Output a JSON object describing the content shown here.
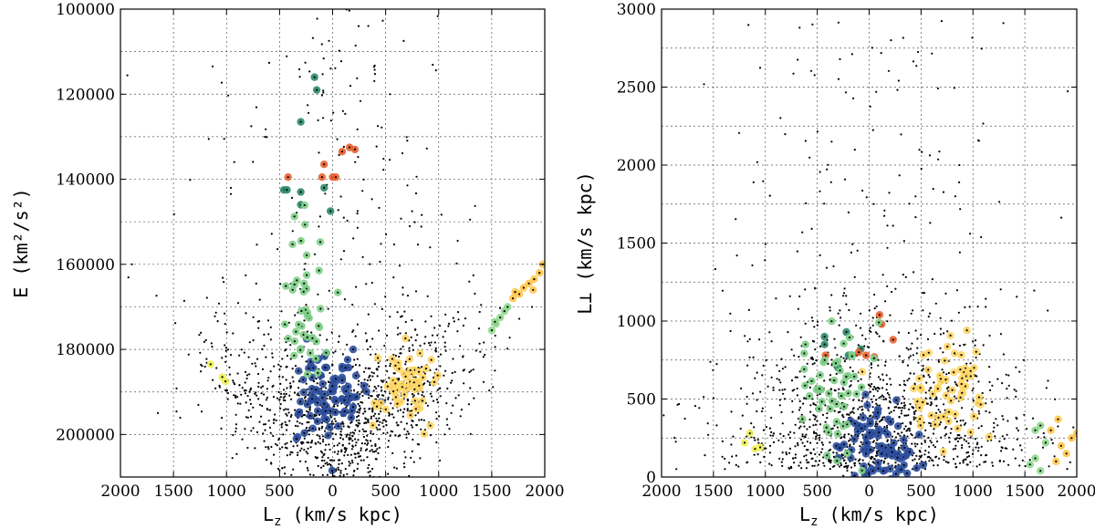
{
  "chart_data": [
    {
      "type": "scatter",
      "title": "",
      "xlabel": "L",
      "xlabel_sub": "z",
      "xlabel_units": "(km/s kpc)",
      "ylabel": "E (km²/s²)",
      "xlim": [
        -2000,
        2000
      ],
      "ylim": [
        210000,
        100000
      ],
      "x_ticks": [
        -2000,
        -1500,
        -1000,
        -500,
        0,
        500,
        1000,
        1500,
        2000
      ],
      "x_tick_labels": [
        "2000",
        "1500",
        "1000",
        "500",
        "0",
        "500",
        "1000",
        "1500",
        "2000"
      ],
      "y_ticks": [
        100000,
        120000,
        140000,
        160000,
        180000,
        200000
      ],
      "y_tick_labels": [
        "100000",
        "120000",
        "140000",
        "160000",
        "180000",
        "200000"
      ],
      "grid": true,
      "series": [
        {
          "color": "#2d4f9e",
          "center": [
            -20,
            190500
          ],
          "spread": [
            190,
            7000
          ],
          "count": 90
        },
        {
          "color": "#ffd766",
          "center": [
            700,
            188000
          ],
          "spread": [
            160,
            4000
          ],
          "count": 60
        },
        {
          "color": "#2b8a6c",
          "points": [
            [
              -170,
              116000
            ],
            [
              -150,
              119000
            ],
            [
              -300,
              126500
            ],
            [
              -460,
              142500
            ],
            [
              -430,
              142500
            ],
            [
              -300,
              143000
            ],
            [
              -80,
              142000
            ],
            [
              -300,
              146000
            ],
            [
              -20,
              147500
            ]
          ]
        },
        {
          "color": "#e8602c",
          "points": [
            [
              90,
              133500
            ],
            [
              160,
              132500
            ],
            [
              210,
              133000
            ],
            [
              -80,
              136500
            ],
            [
              -420,
              139500
            ],
            [
              -100,
              139500
            ],
            [
              0,
              139500
            ],
            [
              30,
              139500
            ]
          ]
        },
        {
          "color": "#7fcf88",
          "center": [
            -250,
            170000
          ],
          "spread": [
            130,
            9000
          ],
          "count": 45
        },
        {
          "color": "#8fd98f",
          "points": [
            [
              1500,
              175500
            ],
            [
              1540,
              174000
            ],
            [
              1580,
              172500
            ],
            [
              1620,
              171000
            ],
            [
              1650,
              170000
            ],
            [
              1530,
              173500
            ]
          ]
        },
        {
          "color": "#ffc64a",
          "points": [
            [
              1700,
              168000
            ],
            [
              1760,
              167000
            ],
            [
              1800,
              165500
            ],
            [
              1850,
              164500
            ],
            [
              1900,
              163500
            ],
            [
              1950,
              162000
            ],
            [
              1980,
              160000
            ],
            [
              1720,
              166500
            ],
            [
              1890,
              166000
            ]
          ]
        },
        {
          "color": "#f0f05a",
          "points": [
            [
              -1150,
              183500
            ],
            [
              -1040,
              186500
            ],
            [
              -1010,
              187500
            ]
          ]
        }
      ]
    },
    {
      "type": "scatter",
      "title": "",
      "xlabel": "L",
      "xlabel_sub": "z",
      "xlabel_units": "(km/s kpc)",
      "ylabel": "L⊥ (km/s kpc)",
      "xlim": [
        -2000,
        2000
      ],
      "ylim": [
        0,
        3000
      ],
      "x_ticks": [
        -2000,
        -1500,
        -1000,
        -500,
        0,
        500,
        1000,
        1500,
        2000
      ],
      "x_tick_labels": [
        "2000",
        "1500",
        "1000",
        "500",
        "0",
        "500",
        "1000",
        "1500",
        "2000"
      ],
      "y_ticks": [
        0,
        500,
        1000,
        1500,
        2000,
        2500,
        3000
      ],
      "y_tick_labels": [
        "0",
        "500",
        "1000",
        "1500",
        "2000",
        "2500",
        "3000"
      ],
      "grid": true,
      "series": [
        {
          "color": "#2d4f9e",
          "center": [
            100,
            180
          ],
          "spread": [
            210,
            130
          ],
          "count": 90
        },
        {
          "color": "#ffd766",
          "center": [
            750,
            560
          ],
          "spread": [
            170,
            150
          ],
          "count": 60
        },
        {
          "color": "#2b8a6c",
          "points": [
            [
              -430,
              900
            ],
            [
              -220,
              930
            ],
            [
              -430,
              850
            ],
            [
              -80,
              820
            ],
            [
              -200,
              780
            ],
            [
              -300,
              700
            ],
            [
              -480,
              560
            ]
          ]
        },
        {
          "color": "#e8602c",
          "points": [
            [
              100,
              1040
            ],
            [
              120,
              980
            ],
            [
              -100,
              800
            ],
            [
              -30,
              780
            ],
            [
              -420,
              780
            ],
            [
              50,
              770
            ],
            [
              230,
              880
            ]
          ]
        },
        {
          "color": "#7fcf88",
          "center": [
            -300,
            550
          ],
          "spread": [
            160,
            220
          ],
          "count": 50
        },
        {
          "color": "#8fd98f",
          "points": [
            [
              1550,
              80
            ],
            [
              1600,
              120
            ],
            [
              1650,
              40
            ],
            [
              1700,
              220
            ],
            [
              1600,
              300
            ],
            [
              1650,
              330
            ]
          ]
        },
        {
          "color": "#ffc64a",
          "points": [
            [
              1800,
              100
            ],
            [
              1850,
              200
            ],
            [
              1900,
              150
            ],
            [
              1950,
              250
            ],
            [
              2000,
              280
            ],
            [
              1750,
              300
            ],
            [
              1820,
              370
            ]
          ]
        },
        {
          "color": "#f0f05a",
          "points": [
            [
              -1200,
              220
            ],
            [
              -1150,
              280
            ],
            [
              -1100,
              180
            ],
            [
              -1050,
              190
            ]
          ]
        }
      ]
    }
  ]
}
